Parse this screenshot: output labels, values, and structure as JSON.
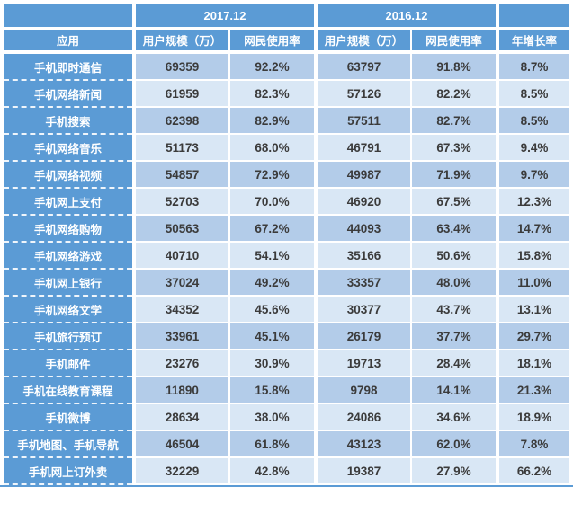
{
  "chart_data": {
    "type": "table",
    "title": "",
    "column_groups": [
      "",
      "2017.12",
      "2016.12",
      ""
    ],
    "columns": [
      "应用",
      "用户规模（万）",
      "网民使用率",
      "用户规模（万）",
      "网民使用率",
      "年增长率"
    ],
    "rows": [
      {
        "app": "手机即时通信",
        "users_2017": "69359",
        "rate_2017": "92.2%",
        "users_2016": "63797",
        "rate_2016": "91.8%",
        "growth": "8.7%"
      },
      {
        "app": "手机网络新闻",
        "users_2017": "61959",
        "rate_2017": "82.3%",
        "users_2016": "57126",
        "rate_2016": "82.2%",
        "growth": "8.5%"
      },
      {
        "app": "手机搜索",
        "users_2017": "62398",
        "rate_2017": "82.9%",
        "users_2016": "57511",
        "rate_2016": "82.7%",
        "growth": "8.5%"
      },
      {
        "app": "手机网络音乐",
        "users_2017": "51173",
        "rate_2017": "68.0%",
        "users_2016": "46791",
        "rate_2016": "67.3%",
        "growth": "9.4%"
      },
      {
        "app": "手机网络视频",
        "users_2017": "54857",
        "rate_2017": "72.9%",
        "users_2016": "49987",
        "rate_2016": "71.9%",
        "growth": "9.7%"
      },
      {
        "app": "手机网上支付",
        "users_2017": "52703",
        "rate_2017": "70.0%",
        "users_2016": "46920",
        "rate_2016": "67.5%",
        "growth": "12.3%"
      },
      {
        "app": "手机网络购物",
        "users_2017": "50563",
        "rate_2017": "67.2%",
        "users_2016": "44093",
        "rate_2016": "63.4%",
        "growth": "14.7%"
      },
      {
        "app": "手机网络游戏",
        "users_2017": "40710",
        "rate_2017": "54.1%",
        "users_2016": "35166",
        "rate_2016": "50.6%",
        "growth": "15.8%"
      },
      {
        "app": "手机网上银行",
        "users_2017": "37024",
        "rate_2017": "49.2%",
        "users_2016": "33357",
        "rate_2016": "48.0%",
        "growth": "11.0%"
      },
      {
        "app": "手机网络文学",
        "users_2017": "34352",
        "rate_2017": "45.6%",
        "users_2016": "30377",
        "rate_2016": "43.7%",
        "growth": "13.1%"
      },
      {
        "app": "手机旅行预订",
        "users_2017": "33961",
        "rate_2017": "45.1%",
        "users_2016": "26179",
        "rate_2016": "37.7%",
        "growth": "29.7%"
      },
      {
        "app": "手机邮件",
        "users_2017": "23276",
        "rate_2017": "30.9%",
        "users_2016": "19713",
        "rate_2016": "28.4%",
        "growth": "18.1%"
      },
      {
        "app": "手机在线教育课程",
        "users_2017": "11890",
        "rate_2017": "15.8%",
        "users_2016": "9798",
        "rate_2016": "14.1%",
        "growth": "21.3%"
      },
      {
        "app": "手机微博",
        "users_2017": "28634",
        "rate_2017": "38.0%",
        "users_2016": "24086",
        "rate_2016": "34.6%",
        "growth": "18.9%"
      },
      {
        "app": "手机地图、手机导航",
        "users_2017": "46504",
        "rate_2017": "61.8%",
        "users_2016": "43123",
        "rate_2016": "62.0%",
        "growth": "7.8%"
      },
      {
        "app": "手机网上订外卖",
        "users_2017": "32229",
        "rate_2017": "42.8%",
        "users_2016": "19387",
        "rate_2016": "27.9%",
        "growth": "66.2%"
      }
    ],
    "layout": {
      "stripe_odd_rows": true,
      "gridlines": "white separators, dashed white between row labels",
      "legend": "none"
    }
  },
  "colors": {
    "header_blue": "#5B9BD5",
    "stripe_medium": "#B3CCE9",
    "stripe_light": "#D9E7F5",
    "value_text": "#3b3b3b",
    "header_text": "#ffffff",
    "separator": "#ffffff",
    "bottom_border": "#5B9BD5"
  }
}
